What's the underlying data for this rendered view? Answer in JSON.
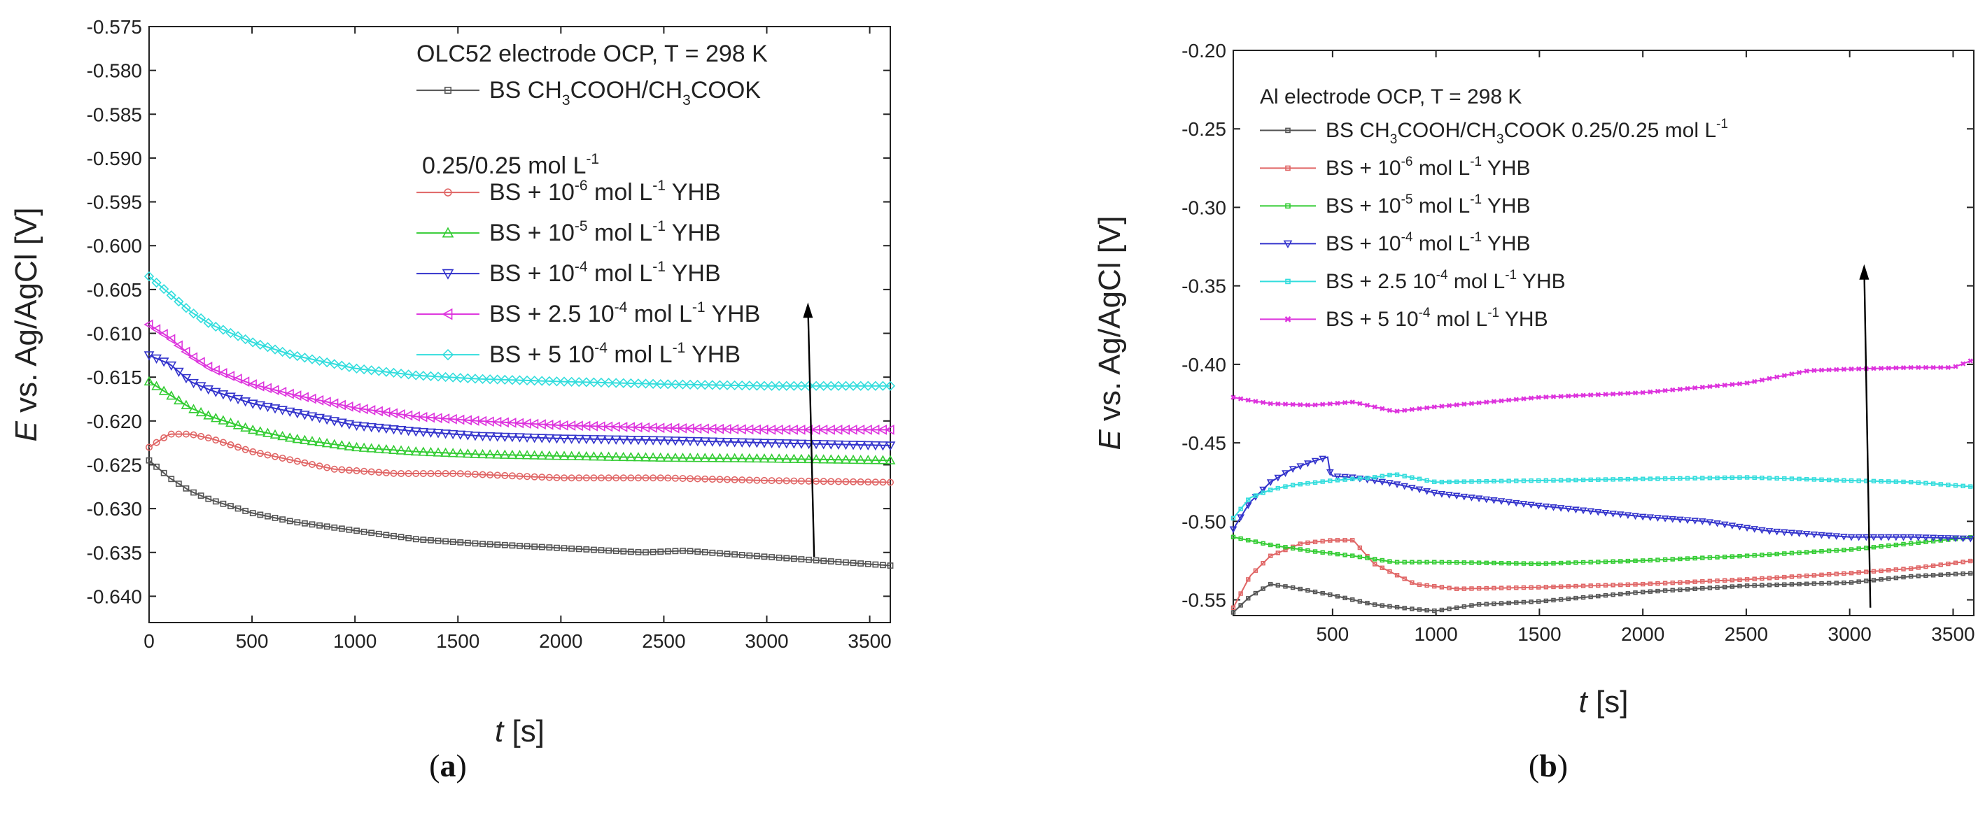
{
  "chart_data": [
    {
      "panel": "a",
      "type": "line",
      "title": "OLC52 electrode OCP, T = 298 K",
      "caption": "(a)",
      "xlabel": {
        "var": "t",
        "unit": " [s]"
      },
      "ylabel": {
        "var": "E",
        "rest": " vs. Ag/AgCl [V]"
      },
      "xlim": [
        0,
        3600
      ],
      "ylim": [
        -0.643,
        -0.575
      ],
      "xticks": [
        "0",
        "500",
        "1000",
        "1500",
        "2000",
        "2500",
        "3000",
        "3500"
      ],
      "xtick_values": [
        0,
        500,
        1000,
        1500,
        2000,
        2500,
        3000,
        3500
      ],
      "yticks": [
        "-0.575",
        "-0.580",
        "-0.585",
        "-0.590",
        "-0.595",
        "-0.600",
        "-0.605",
        "-0.610",
        "-0.615",
        "-0.620",
        "-0.625",
        "-0.630",
        "-0.635",
        "-0.640"
      ],
      "ytick_values": [
        -0.575,
        -0.58,
        -0.585,
        -0.59,
        -0.595,
        -0.6,
        -0.605,
        -0.61,
        -0.615,
        -0.62,
        -0.625,
        -0.63,
        -0.635,
        -0.64
      ],
      "legend_subline": [
        "0.25/0.25 mol L",
        "-1"
      ],
      "arrow": {
        "x": [
          3230,
          3200
        ],
        "y": [
          -0.6355,
          -0.6068
        ]
      },
      "series": [
        {
          "name": "BS CH3COOH/CH3COOK",
          "label": [
            "BS CH",
            "3",
            "COOH/CH",
            "3",
            "COOK"
          ],
          "color": "#555555",
          "marker": "square",
          "x": [
            0,
            100,
            200,
            300,
            500,
            700,
            1000,
            1300,
            1600,
            2000,
            2400,
            2600,
            3000,
            3300,
            3600
          ],
          "y": [
            -0.6245,
            -0.6265,
            -0.628,
            -0.629,
            -0.6305,
            -0.6315,
            -0.6325,
            -0.6335,
            -0.634,
            -0.6345,
            -0.635,
            -0.6348,
            -0.6355,
            -0.636,
            -0.6365
          ]
        },
        {
          "name": "BS + 10-6 mol L-1 YHB",
          "label": [
            "BS + 10",
            "-6",
            " mol L",
            "-1",
            " YHB"
          ],
          "color": "#e06666",
          "marker": "circle",
          "x": [
            0,
            100,
            200,
            300,
            500,
            700,
            900,
            1200,
            1500,
            2000,
            2500,
            3000,
            3600
          ],
          "y": [
            -0.623,
            -0.6215,
            -0.6215,
            -0.622,
            -0.6235,
            -0.6245,
            -0.6255,
            -0.626,
            -0.626,
            -0.6265,
            -0.6265,
            -0.6268,
            -0.627
          ]
        },
        {
          "name": "BS + 10-5 mol L-1 YHB",
          "label": [
            "BS + 10",
            "-5",
            " mol L",
            "-1",
            " YHB"
          ],
          "color": "#33cc33",
          "marker": "triangle-up",
          "x": [
            0,
            100,
            200,
            300,
            500,
            700,
            1000,
            1300,
            1600,
            2000,
            2500,
            3000,
            3600
          ],
          "y": [
            -0.6155,
            -0.617,
            -0.6185,
            -0.6195,
            -0.621,
            -0.622,
            -0.623,
            -0.6235,
            -0.6238,
            -0.624,
            -0.6242,
            -0.6243,
            -0.6245
          ]
        },
        {
          "name": "BS + 10-4 mol L-1 YHB",
          "label": [
            "BS + 10",
            "-4",
            " mol L",
            "-1",
            " YHB"
          ],
          "color": "#3333cc",
          "marker": "triangle-down",
          "x": [
            0,
            100,
            200,
            300,
            500,
            700,
            1000,
            1300,
            1600,
            2000,
            2500,
            3000,
            3600
          ],
          "y": [
            -0.6125,
            -0.6135,
            -0.6155,
            -0.6165,
            -0.618,
            -0.619,
            -0.6205,
            -0.6212,
            -0.6217,
            -0.622,
            -0.6222,
            -0.6225,
            -0.6228
          ]
        },
        {
          "name": "BS + 2.5 10-4 mol L-1 YHB",
          "label": [
            "BS + 2.5 10",
            "-4",
            " mol L",
            "-1",
            " YHB"
          ],
          "color": "#dd33dd",
          "marker": "triangle-left",
          "x": [
            0,
            100,
            200,
            300,
            500,
            700,
            1000,
            1300,
            1600,
            2000,
            2500,
            3000,
            3600
          ],
          "y": [
            -0.609,
            -0.6105,
            -0.6125,
            -0.614,
            -0.6158,
            -0.617,
            -0.6185,
            -0.6195,
            -0.62,
            -0.6205,
            -0.6208,
            -0.621,
            -0.621
          ]
        },
        {
          "name": "BS + 5 10-4 mol L-1 YHB",
          "label": [
            "BS + 5 10",
            "-4",
            " mol L",
            "-1",
            " YHB"
          ],
          "color": "#33dddd",
          "marker": "diamond",
          "x": [
            0,
            100,
            200,
            300,
            500,
            700,
            1000,
            1300,
            1600,
            2000,
            2500,
            3000,
            3600
          ],
          "y": [
            -0.6035,
            -0.6055,
            -0.6075,
            -0.609,
            -0.611,
            -0.6125,
            -0.614,
            -0.6148,
            -0.6152,
            -0.6155,
            -0.6158,
            -0.616,
            -0.616
          ]
        }
      ]
    },
    {
      "panel": "b",
      "type": "line",
      "title": "Al electrode OCP, T = 298 K",
      "caption": "(b)",
      "xlabel": {
        "var": "t",
        "unit": " [s]"
      },
      "ylabel": {
        "var": "E",
        "rest": " vs. Ag/AgCl [V]"
      },
      "xlim": [
        20,
        3600
      ],
      "ylim": [
        -0.56,
        -0.2
      ],
      "xticks": [
        "500",
        "1000",
        "1500",
        "2000",
        "2500",
        "3000",
        "3500"
      ],
      "xtick_values": [
        500,
        1000,
        1500,
        2000,
        2500,
        3000,
        3500
      ],
      "yticks": [
        "-0.20",
        "-0.25",
        "-0.30",
        "-0.35",
        "-0.40",
        "-0.45",
        "-0.50",
        "-0.55"
      ],
      "ytick_values": [
        -0.2,
        -0.25,
        -0.3,
        -0.35,
        -0.4,
        -0.45,
        -0.5,
        -0.55
      ],
      "arrow": {
        "x": [
          3100,
          3070
        ],
        "y": [
          -0.555,
          -0.338
        ]
      },
      "series": [
        {
          "name": "BS CH3COOH/CH3COOK 0.25/0.25 mol L-1",
          "label": [
            "BS CH",
            "3",
            "COOH/CH",
            "3",
            "COOK 0.25/0.25 mol L",
            "-1",
            ""
          ],
          "color": "#555555",
          "marker": "square",
          "x": [
            20,
            100,
            200,
            300,
            500,
            700,
            900,
            1000,
            1200,
            1500,
            2000,
            2500,
            3000,
            3300,
            3600
          ],
          "y": [
            -0.558,
            -0.548,
            -0.54,
            -0.542,
            -0.547,
            -0.553,
            -0.556,
            -0.557,
            -0.553,
            -0.551,
            -0.545,
            -0.541,
            -0.539,
            -0.535,
            -0.533
          ]
        },
        {
          "name": "BS + 10-6 mol L-1 YHB",
          "label": [
            "BS + 10",
            "-6",
            " mol L",
            "-1",
            " YHB"
          ],
          "color": "#e06666",
          "marker": "square",
          "x": [
            20,
            100,
            200,
            350,
            500,
            600,
            700,
            900,
            1100,
            1500,
            2000,
            2500,
            3000,
            3300,
            3600
          ],
          "y": [
            -0.555,
            -0.535,
            -0.522,
            -0.514,
            -0.512,
            -0.512,
            -0.527,
            -0.54,
            -0.543,
            -0.542,
            -0.54,
            -0.537,
            -0.533,
            -0.53,
            -0.525
          ]
        },
        {
          "name": "BS + 10-5 mol L-1 YHB",
          "label": [
            "BS + 10",
            "-5",
            " mol L",
            "-1",
            " YHB"
          ],
          "color": "#33cc33",
          "marker": "square",
          "x": [
            20,
            200,
            400,
            600,
            800,
            1000,
            1500,
            2000,
            2500,
            3000,
            3300,
            3600
          ],
          "y": [
            -0.51,
            -0.515,
            -0.519,
            -0.522,
            -0.526,
            -0.526,
            -0.527,
            -0.525,
            -0.522,
            -0.518,
            -0.514,
            -0.51
          ]
        },
        {
          "name": "BS + 10-4 mol L-1 YHB",
          "label": [
            "BS + 10",
            "-4",
            " mol L",
            "-1",
            " YHB"
          ],
          "color": "#3333cc",
          "marker": "triangle-down",
          "x": [
            20,
            100,
            200,
            300,
            400,
            480,
            490,
            600,
            800,
            1000,
            1500,
            2000,
            2300,
            2600,
            3000,
            3300,
            3600
          ],
          "y": [
            -0.505,
            -0.488,
            -0.475,
            -0.467,
            -0.462,
            -0.459,
            -0.471,
            -0.472,
            -0.476,
            -0.482,
            -0.49,
            -0.497,
            -0.5,
            -0.506,
            -0.51,
            -0.51,
            -0.511
          ]
        },
        {
          "name": "BS + 2.5 10-4 mol L-1 YHB",
          "label": [
            "BS + 2.5 10",
            "-4",
            " mol L",
            "-1",
            " YHB"
          ],
          "color": "#33dddd",
          "marker": "square",
          "x": [
            20,
            100,
            200,
            300,
            500,
            700,
            800,
            1000,
            1500,
            2000,
            2500,
            3000,
            3300,
            3600
          ],
          "y": [
            -0.498,
            -0.485,
            -0.48,
            -0.477,
            -0.474,
            -0.472,
            -0.47,
            -0.475,
            -0.474,
            -0.473,
            -0.472,
            -0.474,
            -0.475,
            -0.478
          ]
        },
        {
          "name": "BS + 5 10-4 mol L-1 YHB",
          "label": [
            "BS + 5 10",
            "-4",
            " mol L",
            "-1",
            " YHB"
          ],
          "color": "#dd33dd",
          "marker": "cross",
          "x": [
            20,
            100,
            200,
            400,
            600,
            800,
            1000,
            1500,
            2000,
            2500,
            2800,
            3000,
            3300,
            3500,
            3600
          ],
          "y": [
            -0.421,
            -0.423,
            -0.425,
            -0.426,
            -0.424,
            -0.43,
            -0.427,
            -0.421,
            -0.418,
            -0.412,
            -0.404,
            -0.403,
            -0.402,
            -0.402,
            -0.397
          ]
        }
      ]
    }
  ]
}
